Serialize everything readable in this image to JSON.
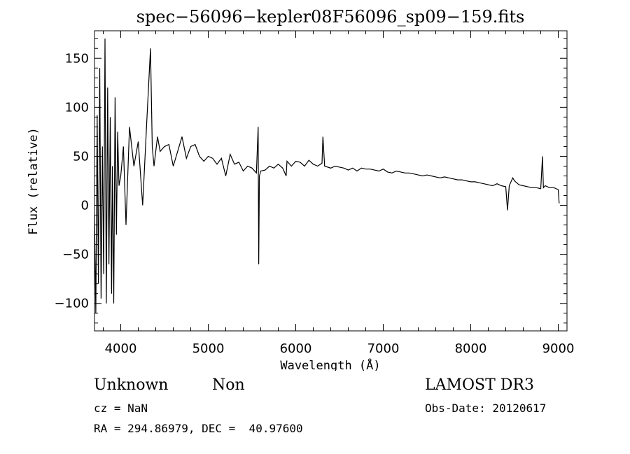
{
  "chart_data": {
    "type": "line",
    "title": "spec−56096−kepler08F56096_sp09−159.fits",
    "xlabel": "Wavelength (Å)",
    "ylabel": "Flux (relative)",
    "xlim": [
      3700,
      9100
    ],
    "ylim": [
      -128,
      178
    ],
    "xticks": [
      4000,
      5000,
      6000,
      7000,
      8000,
      9000
    ],
    "xtick_labels": [
      "4000",
      "5000",
      "6000",
      "7000",
      "8000",
      "9000"
    ],
    "yticks": [
      -100,
      -50,
      0,
      50,
      100,
      150
    ],
    "ytick_labels": [
      "−100",
      "−50",
      "0",
      "50",
      "100",
      "150"
    ],
    "grid": false,
    "series": [
      {
        "name": "flux",
        "x": [
          3700,
          3715,
          3730,
          3745,
          3760,
          3775,
          3790,
          3805,
          3820,
          3835,
          3850,
          3865,
          3880,
          3895,
          3905,
          3920,
          3935,
          3950,
          3965,
          3980,
          4000,
          4030,
          4060,
          4100,
          4150,
          4200,
          4250,
          4300,
          4340,
          4360,
          4380,
          4420,
          4450,
          4500,
          4550,
          4600,
          4650,
          4700,
          4750,
          4800,
          4850,
          4900,
          4950,
          5000,
          5050,
          5100,
          5150,
          5200,
          5250,
          5300,
          5350,
          5400,
          5450,
          5500,
          5550,
          5570,
          5577,
          5585,
          5600,
          5650,
          5700,
          5750,
          5800,
          5850,
          5890,
          5900,
          5950,
          6000,
          6050,
          6100,
          6150,
          6200,
          6250,
          6300,
          6310,
          6330,
          6400,
          6450,
          6500,
          6550,
          6600,
          6650,
          6700,
          6750,
          6800,
          6850,
          6900,
          6950,
          7000,
          7050,
          7100,
          7150,
          7200,
          7250,
          7300,
          7350,
          7400,
          7450,
          7500,
          7550,
          7600,
          7650,
          7700,
          7750,
          7800,
          7850,
          7900,
          7950,
          8000,
          8050,
          8100,
          8150,
          8200,
          8250,
          8300,
          8350,
          8400,
          8420,
          8440,
          8480,
          8500,
          8550,
          8600,
          8650,
          8700,
          8750,
          8800,
          8820,
          8830,
          8850,
          8900,
          8950,
          9000,
          9010
        ],
        "values": [
          -10,
          -110,
          92,
          -80,
          140,
          -95,
          60,
          -70,
          170,
          -100,
          120,
          -60,
          90,
          -90,
          40,
          -100,
          110,
          -30,
          75,
          20,
          30,
          60,
          -20,
          80,
          40,
          65,
          0,
          90,
          160,
          60,
          40,
          70,
          55,
          60,
          62,
          40,
          55,
          70,
          48,
          60,
          62,
          50,
          45,
          50,
          48,
          42,
          48,
          30,
          52,
          42,
          44,
          35,
          40,
          38,
          33,
          80,
          -60,
          30,
          35,
          36,
          40,
          38,
          42,
          38,
          30,
          45,
          40,
          45,
          44,
          40,
          46,
          42,
          40,
          43,
          70,
          40,
          38,
          40,
          39,
          38,
          36,
          38,
          35,
          38,
          37,
          37,
          36,
          35,
          37,
          34,
          33,
          35,
          34,
          33,
          33,
          32,
          31,
          30,
          31,
          30,
          29,
          28,
          29,
          28,
          27,
          26,
          26,
          25,
          24,
          24,
          23,
          22,
          21,
          20,
          22,
          20,
          19,
          -5,
          20,
          28,
          25,
          21,
          20,
          19,
          18,
          18,
          17,
          50,
          18,
          20,
          18,
          18,
          16,
          2
        ]
      }
    ]
  },
  "labels": {
    "object_class": "Unknown",
    "object_subclass": "Non",
    "survey": "LAMOST DR3",
    "cz": "cz = NaN",
    "obs_date": "Obs-Date: 20120617",
    "coords": "RA = 294.86979, DEC =  40.97600"
  }
}
